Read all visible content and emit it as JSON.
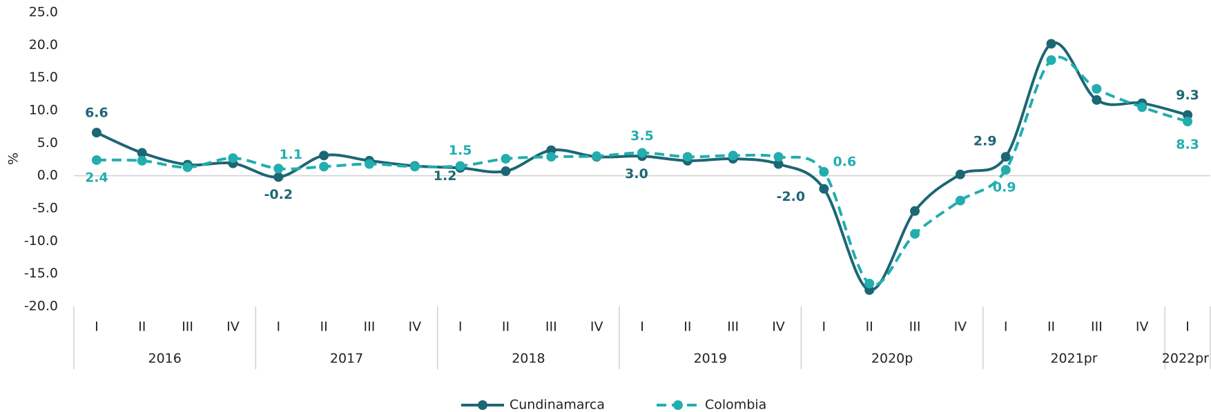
{
  "chart_data": {
    "type": "line",
    "ylabel": "%",
    "groups": [
      {
        "name": "2016",
        "categories": [
          "I",
          "II",
          "III",
          "IV"
        ]
      },
      {
        "name": "2017",
        "categories": [
          "I",
          "II",
          "III",
          "IV"
        ]
      },
      {
        "name": "2018",
        "categories": [
          "I",
          "II",
          "III",
          "IV"
        ]
      },
      {
        "name": "2019",
        "categories": [
          "I",
          "II",
          "III",
          "IV"
        ]
      },
      {
        "name": "2020p",
        "categories": [
          "I",
          "II",
          "III",
          "IV"
        ]
      },
      {
        "name": "2021pr",
        "categories": [
          "I",
          "II",
          "III",
          "IV"
        ]
      },
      {
        "name": "2022pr",
        "categories": [
          "I"
        ]
      }
    ],
    "series": [
      {
        "name": "Cundinamarca",
        "color": "#1d6674",
        "line_style": "solid",
        "values": [
          6.6,
          3.5,
          1.7,
          1.9,
          -0.2,
          3.1,
          2.3,
          1.5,
          1.2,
          0.7,
          3.9,
          2.9,
          3.0,
          2.3,
          2.6,
          1.8,
          -2.0,
          -17.5,
          -5.4,
          0.2,
          2.9,
          20.2,
          11.6,
          11.1,
          9.3
        ],
        "value_labels": [
          "6.6",
          null,
          null,
          null,
          "-0.2",
          null,
          null,
          null,
          "1.2",
          null,
          null,
          null,
          "3.0",
          null,
          null,
          null,
          "-2.0",
          null,
          null,
          null,
          "2.9",
          null,
          null,
          null,
          "9.3"
        ]
      },
      {
        "name": "Colombia",
        "color": "#22adaf",
        "line_style": "dashed",
        "values": [
          2.4,
          2.3,
          1.3,
          2.7,
          1.1,
          1.4,
          1.8,
          1.4,
          1.5,
          2.6,
          2.9,
          3.0,
          3.5,
          2.9,
          3.1,
          2.9,
          0.6,
          -16.5,
          -8.9,
          -3.8,
          0.9,
          17.7,
          13.3,
          10.5,
          8.3
        ],
        "value_labels": [
          "2.4",
          null,
          null,
          null,
          "1.1",
          null,
          null,
          null,
          "1.5",
          null,
          null,
          null,
          "3.5",
          null,
          null,
          null,
          "0.6",
          null,
          null,
          null,
          "0.9",
          null,
          null,
          null,
          "8.3"
        ]
      }
    ],
    "ylim": [
      -20,
      25
    ],
    "yticks": [
      {
        "value": -20,
        "label": "-20.0"
      },
      {
        "value": -15,
        "label": "-15.0"
      },
      {
        "value": -10,
        "label": "-10.0"
      },
      {
        "value": -5,
        "label": "-5.0"
      },
      {
        "value": 0,
        "label": "0.0"
      },
      {
        "value": 5,
        "label": "5.0"
      },
      {
        "value": 10,
        "label": "10.0"
      },
      {
        "value": 15,
        "label": "15.0"
      },
      {
        "value": 20,
        "label": "20.0"
      },
      {
        "value": 25,
        "label": "25.0"
      }
    ],
    "grid": false,
    "legend": "bottom"
  }
}
